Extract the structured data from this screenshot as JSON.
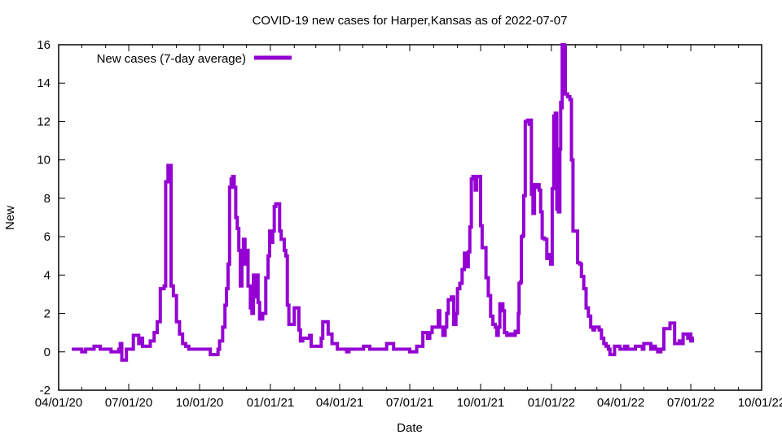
{
  "chart_data": {
    "type": "line",
    "title": "COVID-19 new cases for Harper,Kansas as of 2022-07-07",
    "xlabel": "Date",
    "ylabel": "New",
    "grid": false,
    "legend_position": "top-left-inside",
    "ylim": [
      -2,
      16
    ],
    "y_ticks": [
      "-2",
      "0",
      "2",
      "4",
      "6",
      "8",
      "10",
      "12",
      "14",
      "16"
    ],
    "x_range": [
      "2020-04-01",
      "2022-10-01"
    ],
    "x_ticks": [
      {
        "date": "2020-04-01",
        "label": "04/01/20"
      },
      {
        "date": "2020-07-01",
        "label": "07/01/20"
      },
      {
        "date": "2020-10-01",
        "label": "10/01/20"
      },
      {
        "date": "2021-01-01",
        "label": "01/01/21"
      },
      {
        "date": "2021-04-01",
        "label": "04/01/21"
      },
      {
        "date": "2021-07-01",
        "label": "07/01/21"
      },
      {
        "date": "2021-10-01",
        "label": "10/01/21"
      },
      {
        "date": "2022-01-01",
        "label": "01/01/22"
      },
      {
        "date": "2022-04-01",
        "label": "04/01/22"
      },
      {
        "date": "2022-07-01",
        "label": "07/01/22"
      },
      {
        "date": "2022-10-01",
        "label": "10/01/22"
      }
    ],
    "x_minor_tick_unit": "month",
    "series": [
      {
        "name": "New cases (7-day average)",
        "color": "#9400D3",
        "line_width": 4,
        "points": [
          [
            "2020-04-18",
            0.14
          ],
          [
            "2020-04-28",
            0.14
          ],
          [
            "2020-05-01",
            0.0
          ],
          [
            "2020-05-04",
            0.0
          ],
          [
            "2020-05-06",
            0.14
          ],
          [
            "2020-05-15",
            0.14
          ],
          [
            "2020-05-17",
            0.29
          ],
          [
            "2020-05-23",
            0.29
          ],
          [
            "2020-05-25",
            0.14
          ],
          [
            "2020-06-06",
            0.14
          ],
          [
            "2020-06-08",
            0.0
          ],
          [
            "2020-06-16",
            0.0
          ],
          [
            "2020-06-18",
            0.14
          ],
          [
            "2020-06-20",
            0.43
          ],
          [
            "2020-06-22",
            -0.43
          ],
          [
            "2020-06-26",
            -0.43
          ],
          [
            "2020-06-28",
            0.14
          ],
          [
            "2020-07-05",
            0.14
          ],
          [
            "2020-07-07",
            0.86
          ],
          [
            "2020-07-12",
            0.86
          ],
          [
            "2020-07-14",
            0.43
          ],
          [
            "2020-07-16",
            0.71
          ],
          [
            "2020-07-19",
            0.29
          ],
          [
            "2020-07-25",
            0.29
          ],
          [
            "2020-07-29",
            0.57
          ],
          [
            "2020-08-03",
            1.0
          ],
          [
            "2020-08-07",
            1.57
          ],
          [
            "2020-08-11",
            3.29
          ],
          [
            "2020-08-16",
            3.43
          ],
          [
            "2020-08-18",
            8.86
          ],
          [
            "2020-08-20",
            8.86
          ],
          [
            "2020-08-21",
            9.71
          ],
          [
            "2020-08-23",
            9.71
          ],
          [
            "2020-08-25",
            3.43
          ],
          [
            "2020-08-28",
            2.93
          ],
          [
            "2020-09-01",
            1.57
          ],
          [
            "2020-09-05",
            0.93
          ],
          [
            "2020-09-09",
            0.43
          ],
          [
            "2020-09-13",
            0.29
          ],
          [
            "2020-09-17",
            0.14
          ],
          [
            "2020-10-12",
            0.14
          ],
          [
            "2020-10-15",
            -0.14
          ],
          [
            "2020-10-23",
            -0.14
          ],
          [
            "2020-10-25",
            0.14
          ],
          [
            "2020-10-27",
            0.57
          ],
          [
            "2020-10-31",
            1.29
          ],
          [
            "2020-11-03",
            2.43
          ],
          [
            "2020-11-05",
            3.29
          ],
          [
            "2020-11-07",
            4.57
          ],
          [
            "2020-11-09",
            8.57
          ],
          [
            "2020-11-11",
            9.0
          ],
          [
            "2020-11-13",
            9.14
          ],
          [
            "2020-11-15",
            8.57
          ],
          [
            "2020-11-17",
            7.0
          ],
          [
            "2020-11-19",
            6.43
          ],
          [
            "2020-11-21",
            5.29
          ],
          [
            "2020-11-23",
            3.43
          ],
          [
            "2020-11-25",
            5.29
          ],
          [
            "2020-11-27",
            5.86
          ],
          [
            "2020-11-29",
            4.57
          ],
          [
            "2020-12-01",
            5.29
          ],
          [
            "2020-12-03",
            3.43
          ],
          [
            "2020-12-06",
            2.29
          ],
          [
            "2020-12-08",
            2.0
          ],
          [
            "2020-12-10",
            4.0
          ],
          [
            "2020-12-12",
            2.86
          ],
          [
            "2020-12-14",
            4.0
          ],
          [
            "2020-12-16",
            2.57
          ],
          [
            "2020-12-18",
            1.71
          ],
          [
            "2020-12-22",
            2.0
          ],
          [
            "2020-12-26",
            3.86
          ],
          [
            "2020-12-29",
            5.0
          ],
          [
            "2020-12-31",
            6.29
          ],
          [
            "2021-01-02",
            5.71
          ],
          [
            "2021-01-04",
            6.29
          ],
          [
            "2021-01-06",
            7.57
          ],
          [
            "2021-01-08",
            7.71
          ],
          [
            "2021-01-11",
            7.71
          ],
          [
            "2021-01-13",
            6.29
          ],
          [
            "2021-01-15",
            5.86
          ],
          [
            "2021-01-17",
            5.86
          ],
          [
            "2021-01-19",
            5.29
          ],
          [
            "2021-01-21",
            5.0
          ],
          [
            "2021-01-23",
            2.43
          ],
          [
            "2021-01-25",
            1.43
          ],
          [
            "2021-01-29",
            1.43
          ],
          [
            "2021-02-01",
            2.29
          ],
          [
            "2021-02-05",
            2.29
          ],
          [
            "2021-02-07",
            1.14
          ],
          [
            "2021-02-09",
            0.57
          ],
          [
            "2021-02-12",
            0.71
          ],
          [
            "2021-02-19",
            0.71
          ],
          [
            "2021-02-21",
            0.86
          ],
          [
            "2021-02-23",
            0.29
          ],
          [
            "2021-03-04",
            0.29
          ],
          [
            "2021-03-08",
            0.71
          ],
          [
            "2021-03-10",
            1.57
          ],
          [
            "2021-03-15",
            1.57
          ],
          [
            "2021-03-17",
            0.93
          ],
          [
            "2021-03-20",
            0.93
          ],
          [
            "2021-03-22",
            0.43
          ],
          [
            "2021-03-27",
            0.43
          ],
          [
            "2021-03-29",
            0.14
          ],
          [
            "2021-04-08",
            0.14
          ],
          [
            "2021-04-10",
            0.0
          ],
          [
            "2021-04-13",
            0.14
          ],
          [
            "2021-04-30",
            0.14
          ],
          [
            "2021-05-02",
            0.29
          ],
          [
            "2021-05-08",
            0.29
          ],
          [
            "2021-05-10",
            0.14
          ],
          [
            "2021-05-30",
            0.14
          ],
          [
            "2021-06-01",
            0.43
          ],
          [
            "2021-06-08",
            0.43
          ],
          [
            "2021-06-10",
            0.14
          ],
          [
            "2021-06-28",
            0.14
          ],
          [
            "2021-07-01",
            0.0
          ],
          [
            "2021-07-08",
            0.0
          ],
          [
            "2021-07-10",
            0.29
          ],
          [
            "2021-07-16",
            0.29
          ],
          [
            "2021-07-18",
            1.0
          ],
          [
            "2021-07-22",
            1.0
          ],
          [
            "2021-07-24",
            0.71
          ],
          [
            "2021-07-27",
            1.0
          ],
          [
            "2021-07-30",
            1.29
          ],
          [
            "2021-08-05",
            1.29
          ],
          [
            "2021-08-07",
            2.14
          ],
          [
            "2021-08-09",
            1.29
          ],
          [
            "2021-08-13",
            0.86
          ],
          [
            "2021-08-16",
            1.29
          ],
          [
            "2021-08-18",
            2.0
          ],
          [
            "2021-08-20",
            2.71
          ],
          [
            "2021-08-24",
            2.86
          ],
          [
            "2021-08-27",
            1.43
          ],
          [
            "2021-08-30",
            2.0
          ],
          [
            "2021-09-01",
            3.29
          ],
          [
            "2021-09-04",
            3.57
          ],
          [
            "2021-09-07",
            4.29
          ],
          [
            "2021-09-10",
            5.14
          ],
          [
            "2021-09-12",
            4.43
          ],
          [
            "2021-09-15",
            5.21
          ],
          [
            "2021-09-17",
            6.5
          ],
          [
            "2021-09-19",
            9.0
          ],
          [
            "2021-09-21",
            9.14
          ],
          [
            "2021-09-24",
            8.43
          ],
          [
            "2021-09-26",
            9.14
          ],
          [
            "2021-09-29",
            9.14
          ],
          [
            "2021-10-01",
            6.57
          ],
          [
            "2021-10-03",
            5.43
          ],
          [
            "2021-10-06",
            5.43
          ],
          [
            "2021-10-08",
            3.86
          ],
          [
            "2021-10-11",
            2.93
          ],
          [
            "2021-10-14",
            1.86
          ],
          [
            "2021-10-17",
            1.43
          ],
          [
            "2021-10-20",
            1.29
          ],
          [
            "2021-10-22",
            0.86
          ],
          [
            "2021-10-24",
            1.29
          ],
          [
            "2021-10-26",
            2.5
          ],
          [
            "2021-10-30",
            2.14
          ],
          [
            "2021-11-01",
            1.0
          ],
          [
            "2021-11-04",
            0.86
          ],
          [
            "2021-11-08",
            0.93
          ],
          [
            "2021-11-12",
            0.86
          ],
          [
            "2021-11-15",
            1.07
          ],
          [
            "2021-11-17",
            1.0
          ],
          [
            "2021-11-19",
            2.0
          ],
          [
            "2021-11-20",
            3.57
          ],
          [
            "2021-11-22",
            3.64
          ],
          [
            "2021-11-23",
            6.0
          ],
          [
            "2021-11-25",
            6.07
          ],
          [
            "2021-11-26",
            8.14
          ],
          [
            "2021-11-28",
            12.0
          ],
          [
            "2021-12-01",
            12.07
          ],
          [
            "2021-12-03",
            11.86
          ],
          [
            "2021-12-04",
            12.07
          ],
          [
            "2021-12-06",
            8.21
          ],
          [
            "2021-12-08",
            7.21
          ],
          [
            "2021-12-10",
            8.71
          ],
          [
            "2021-12-12",
            8.57
          ],
          [
            "2021-12-14",
            8.71
          ],
          [
            "2021-12-16",
            8.43
          ],
          [
            "2021-12-18",
            7.29
          ],
          [
            "2021-12-20",
            5.93
          ],
          [
            "2021-12-23",
            5.86
          ],
          [
            "2021-12-26",
            4.86
          ],
          [
            "2021-12-29",
            5.07
          ],
          [
            "2021-12-31",
            4.57
          ],
          [
            "2022-01-02",
            8.5
          ],
          [
            "2022-01-04",
            12.29
          ],
          [
            "2022-01-06",
            12.43
          ],
          [
            "2022-01-08",
            7.43
          ],
          [
            "2022-01-10",
            7.29
          ],
          [
            "2022-01-12",
            10.57
          ],
          [
            "2022-01-13",
            13.0
          ],
          [
            "2022-01-14",
            12.71
          ],
          [
            "2022-01-15",
            16.0
          ],
          [
            "2022-01-18",
            15.86
          ],
          [
            "2022-01-19",
            13.43
          ],
          [
            "2022-01-22",
            13.29
          ],
          [
            "2022-01-25",
            13.14
          ],
          [
            "2022-01-27",
            10.0
          ],
          [
            "2022-01-29",
            6.29
          ],
          [
            "2022-02-02",
            6.29
          ],
          [
            "2022-02-04",
            4.64
          ],
          [
            "2022-02-07",
            4.57
          ],
          [
            "2022-02-09",
            3.93
          ],
          [
            "2022-02-12",
            3.29
          ],
          [
            "2022-02-15",
            2.29
          ],
          [
            "2022-02-18",
            1.86
          ],
          [
            "2022-02-21",
            1.29
          ],
          [
            "2022-02-24",
            1.14
          ],
          [
            "2022-02-26",
            1.29
          ],
          [
            "2022-03-02",
            1.29
          ],
          [
            "2022-03-04",
            1.14
          ],
          [
            "2022-03-07",
            0.71
          ],
          [
            "2022-03-10",
            0.43
          ],
          [
            "2022-03-13",
            0.29
          ],
          [
            "2022-03-16",
            0.14
          ],
          [
            "2022-03-18",
            -0.14
          ],
          [
            "2022-03-22",
            -0.14
          ],
          [
            "2022-03-24",
            0.29
          ],
          [
            "2022-03-28",
            0.29
          ],
          [
            "2022-03-31",
            0.14
          ],
          [
            "2022-04-06",
            0.29
          ],
          [
            "2022-04-10",
            0.14
          ],
          [
            "2022-04-16",
            0.14
          ],
          [
            "2022-04-20",
            0.29
          ],
          [
            "2022-04-26",
            0.29
          ],
          [
            "2022-04-29",
            0.14
          ],
          [
            "2022-05-01",
            0.43
          ],
          [
            "2022-05-08",
            0.43
          ],
          [
            "2022-05-10",
            0.14
          ],
          [
            "2022-05-14",
            0.29
          ],
          [
            "2022-05-16",
            0.14
          ],
          [
            "2022-05-19",
            0.0
          ],
          [
            "2022-05-23",
            0.14
          ],
          [
            "2022-05-27",
            1.21
          ],
          [
            "2022-06-02",
            1.21
          ],
          [
            "2022-06-04",
            1.5
          ],
          [
            "2022-06-08",
            1.5
          ],
          [
            "2022-06-10",
            0.43
          ],
          [
            "2022-06-14",
            0.43
          ],
          [
            "2022-06-16",
            0.57
          ],
          [
            "2022-06-19",
            0.43
          ],
          [
            "2022-06-21",
            0.93
          ],
          [
            "2022-06-25",
            0.93
          ],
          [
            "2022-06-27",
            0.71
          ],
          [
            "2022-06-29",
            0.93
          ],
          [
            "2022-07-01",
            0.57
          ],
          [
            "2022-07-03",
            0.71
          ],
          [
            "2022-07-05",
            0.71
          ]
        ]
      }
    ]
  },
  "colors": {
    "line": "#9400D3",
    "axis": "#000000",
    "background": "#ffffff"
  }
}
